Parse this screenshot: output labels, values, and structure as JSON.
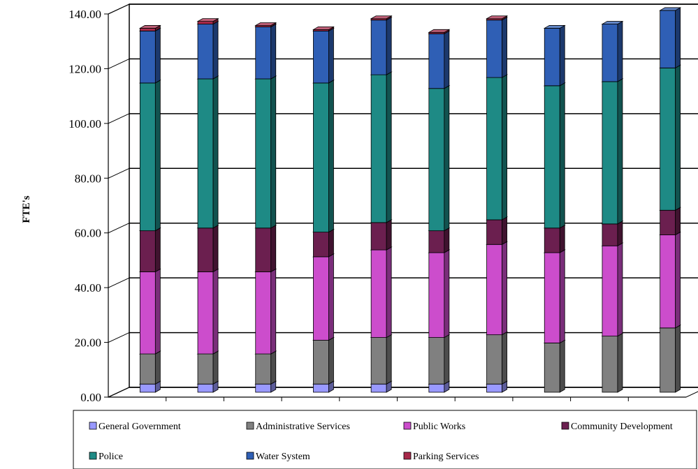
{
  "chart_data": {
    "type": "bar",
    "stacked": true,
    "style": "3d-column",
    "title": "",
    "xlabel": "",
    "ylabel": "FTE's",
    "ylim": [
      0,
      140
    ],
    "yticks": [
      "0.00",
      "20.00",
      "40.00",
      "60.00",
      "80.00",
      "100.00",
      "120.00",
      "140.00"
    ],
    "grid": true,
    "legend_position": "bottom",
    "categories": [
      "",
      "",
      "",
      "",
      "",
      "",
      "",
      "",
      "",
      ""
    ],
    "series": [
      {
        "name": "General Government",
        "color": "#9999ff",
        "values": [
          3,
          3,
          3,
          3,
          3,
          3,
          3,
          0,
          0,
          0
        ]
      },
      {
        "name": "Administrative Services",
        "color": "#808080",
        "values": [
          11,
          11,
          11,
          16,
          17,
          17,
          18,
          18,
          20.5,
          23.5
        ]
      },
      {
        "name": "Public Works",
        "color": "#cc4dcc",
        "values": [
          30,
          30,
          30,
          30.5,
          32,
          31,
          33,
          33,
          33,
          34
        ]
      },
      {
        "name": "Community Development",
        "color": "#6b1f4f",
        "values": [
          15,
          16,
          16,
          9,
          10,
          8,
          9,
          9,
          8,
          9
        ]
      },
      {
        "name": "Police",
        "color": "#1e8a85",
        "values": [
          54,
          54.5,
          54.5,
          54.5,
          54,
          52,
          52,
          52,
          52,
          52
        ]
      },
      {
        "name": "Water System",
        "color": "#2f5fb5",
        "values": [
          19,
          20,
          19,
          19,
          20,
          20,
          21,
          21,
          21,
          21
        ]
      },
      {
        "name": "Parking Services",
        "color": "#a8294a",
        "values": [
          1,
          1,
          0.5,
          0.5,
          0.5,
          0.5,
          0.5,
          0,
          0,
          0
        ]
      }
    ]
  },
  "legend": {
    "items": [
      {
        "label": "General Government",
        "color": "#9999ff"
      },
      {
        "label": "Administrative Services",
        "color": "#808080"
      },
      {
        "label": "Public Works",
        "color": "#cc4dcc"
      },
      {
        "label": "Community Development",
        "color": "#6b1f4f"
      },
      {
        "label": "Police",
        "color": "#1e8a85"
      },
      {
        "label": "Water System",
        "color": "#2f5fb5"
      },
      {
        "label": "Parking Services",
        "color": "#a8294a"
      }
    ]
  }
}
